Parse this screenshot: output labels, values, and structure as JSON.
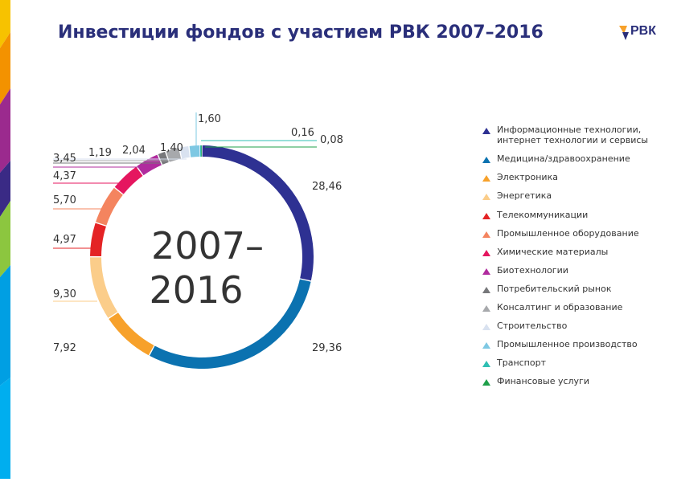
{
  "title": "Инвестиции фондов с участием РВК 2007–2016",
  "logo": {
    "text": "РВК"
  },
  "colors": {
    "title": "#2a2f7a",
    "side_stripe": [
      "#f7c200",
      "#f39200",
      "#9b2a8e",
      "#3a2a85",
      "#8cc63f",
      "#009fe3",
      "#00aeef"
    ]
  },
  "chart_data": {
    "type": "pie",
    "variant": "donut",
    "center_text": [
      "2007–",
      "2016"
    ],
    "slices": [
      {
        "label": "Информационные технологии, интернет технологии и сервисы",
        "value": 28.46,
        "value_label": "28,46",
        "color": "#2e3192"
      },
      {
        "label": "Медицина/здравоохранение",
        "value": 29.36,
        "value_label": "29,36",
        "color": "#0b72b0"
      },
      {
        "label": "Электроника",
        "value": 7.92,
        "value_label": "7,92",
        "color": "#f7a12b"
      },
      {
        "label": "Энергетика",
        "value": 9.3,
        "value_label": "9,30",
        "color": "#fbcd8a"
      },
      {
        "label": "Телекоммуникации",
        "value": 4.97,
        "value_label": "4,97",
        "color": "#e42325"
      },
      {
        "label": "Промышленное оборудование",
        "value": 5.7,
        "value_label": "5,70",
        "color": "#f4845f"
      },
      {
        "label": "Химические материалы",
        "value": 4.37,
        "value_label": "4,37",
        "color": "#e5165f"
      },
      {
        "label": "Биотехнологии",
        "value": 3.45,
        "value_label": "3,45",
        "color": "#b02b9e"
      },
      {
        "label": "Потребительский рынок",
        "value": 1.19,
        "value_label": "1,19",
        "color": "#77787b"
      },
      {
        "label": "Консалтинг и образование",
        "value": 2.04,
        "value_label": "2,04",
        "color": "#a7a9ac"
      },
      {
        "label": "Строительство",
        "value": 1.4,
        "value_label": "1,40",
        "color": "#d9e2f0"
      },
      {
        "label": "Промышленное производство",
        "value": 1.6,
        "value_label": "1,60",
        "color": "#7ec8e3"
      },
      {
        "label": "Транспорт",
        "value": 0.16,
        "value_label": "0,16",
        "color": "#2fbfb3"
      },
      {
        "label": "Финансовые услуги",
        "value": 0.08,
        "value_label": "0,08",
        "color": "#1fa04a"
      }
    ],
    "legend_position": "right"
  }
}
